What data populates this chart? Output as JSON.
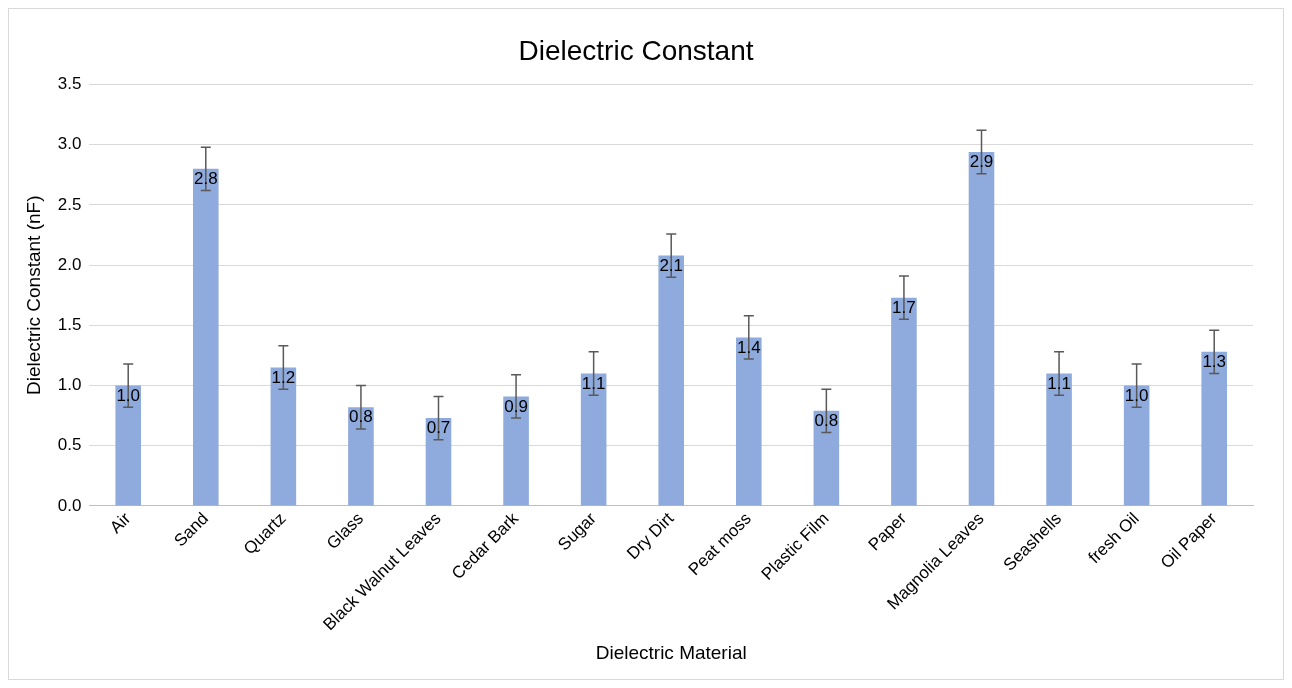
{
  "chart_data": {
    "type": "bar",
    "title": "Dielectric Constant",
    "xlabel": "Dielectric Material",
    "ylabel": "Dielectric Constant (nF)",
    "categories": [
      "Air",
      "Sand",
      "Quartz",
      "Glass",
      "Black Walnut Leaves",
      "Cedar Bark",
      "Sugar",
      "Dry Dirt",
      "Peat moss",
      "Plastic Film",
      "Paper",
      "Magnolia Leaves",
      "Seashells",
      "fresh Oil",
      "Oil Paper"
    ],
    "values": [
      1.0,
      2.8,
      1.15,
      0.82,
      0.73,
      0.91,
      1.1,
      2.08,
      1.4,
      0.79,
      1.73,
      2.94,
      1.1,
      1.0,
      1.28
    ],
    "value_labels": [
      "1.0",
      "2.8",
      "1.2",
      "0.8",
      "0.7",
      "0.9",
      "1.1",
      "2.1",
      "1.4",
      "0.8",
      "1.7",
      "2.9",
      "1.1",
      "1.0",
      "1.3"
    ],
    "errors": [
      0.18,
      0.18,
      0.18,
      0.18,
      0.18,
      0.18,
      0.18,
      0.18,
      0.18,
      0.18,
      0.18,
      0.18,
      0.18,
      0.18,
      0.18
    ],
    "color": "#8faadc",
    "ylim": [
      0,
      3.5
    ],
    "yticks": [
      {
        "value": 0,
        "label": "0.0"
      },
      0.5,
      {
        "value": 1,
        "label": "1.0"
      },
      1.5,
      {
        "value": 2,
        "label": "2.0"
      },
      2.5,
      {
        "value": 3,
        "label": "3.0"
      },
      3.5
    ],
    "grid": "y",
    "legend": false
  }
}
